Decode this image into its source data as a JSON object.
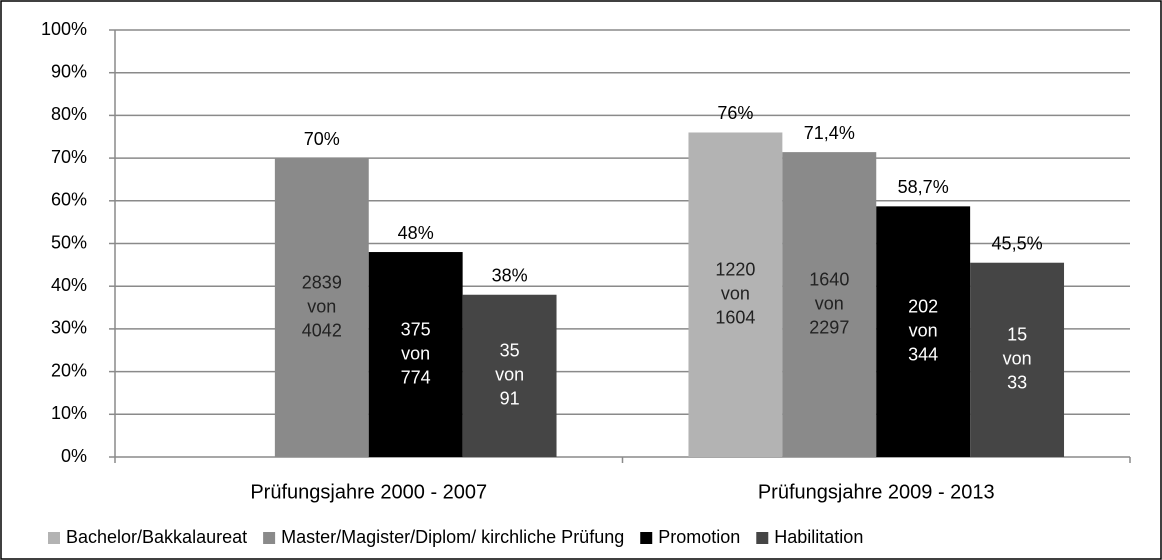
{
  "chart_data": {
    "type": "bar",
    "categories": [
      "Prüfungsjahre 2000 - 2007",
      "Prüfungsjahre 2009 - 2013"
    ],
    "series": [
      {
        "name": "Bachelor/Bakkalaureat",
        "color": "#b3b3b3",
        "values": [
          null,
          76
        ],
        "value_labels": [
          null,
          "76%"
        ],
        "inner_labels": [
          null,
          [
            "1220",
            "von",
            "1604"
          ]
        ]
      },
      {
        "name": "Master/Magister/Diplom/ kirchliche Prüfung",
        "color": "#8a8a8a",
        "values": [
          70,
          71.4
        ],
        "value_labels": [
          "70%",
          "71,4%"
        ],
        "inner_labels": [
          [
            "2839",
            "von",
            "4042"
          ],
          [
            "1640",
            "von",
            "2297"
          ]
        ]
      },
      {
        "name": "Promotion",
        "color": "#000000",
        "values": [
          48,
          58.7
        ],
        "value_labels": [
          "48%",
          "58,7%"
        ],
        "inner_labels": [
          [
            "375",
            "von",
            "774"
          ],
          [
            "202",
            "von",
            "344"
          ]
        ]
      },
      {
        "name": "Habilitation",
        "color": "#454545",
        "values": [
          38,
          45.5
        ],
        "value_labels": [
          "38%",
          "45,5%"
        ],
        "inner_labels": [
          [
            "35",
            "von",
            "91"
          ],
          [
            "15",
            "von",
            "33"
          ]
        ]
      }
    ],
    "ylim": [
      0,
      100
    ],
    "yticks": [
      {
        "value": 0,
        "label": "0%"
      },
      {
        "value": 10,
        "label": "10%"
      },
      {
        "value": 20,
        "label": "20%"
      },
      {
        "value": 30,
        "label": "30%"
      },
      {
        "value": 40,
        "label": "40%"
      },
      {
        "value": 50,
        "label": "50%"
      },
      {
        "value": 60,
        "label": "60%"
      },
      {
        "value": 70,
        "label": "70%"
      },
      {
        "value": 80,
        "label": "80%"
      },
      {
        "value": 90,
        "label": "90%"
      },
      {
        "value": 100,
        "label": "100%"
      }
    ],
    "grid": true,
    "legend": "bottom"
  }
}
